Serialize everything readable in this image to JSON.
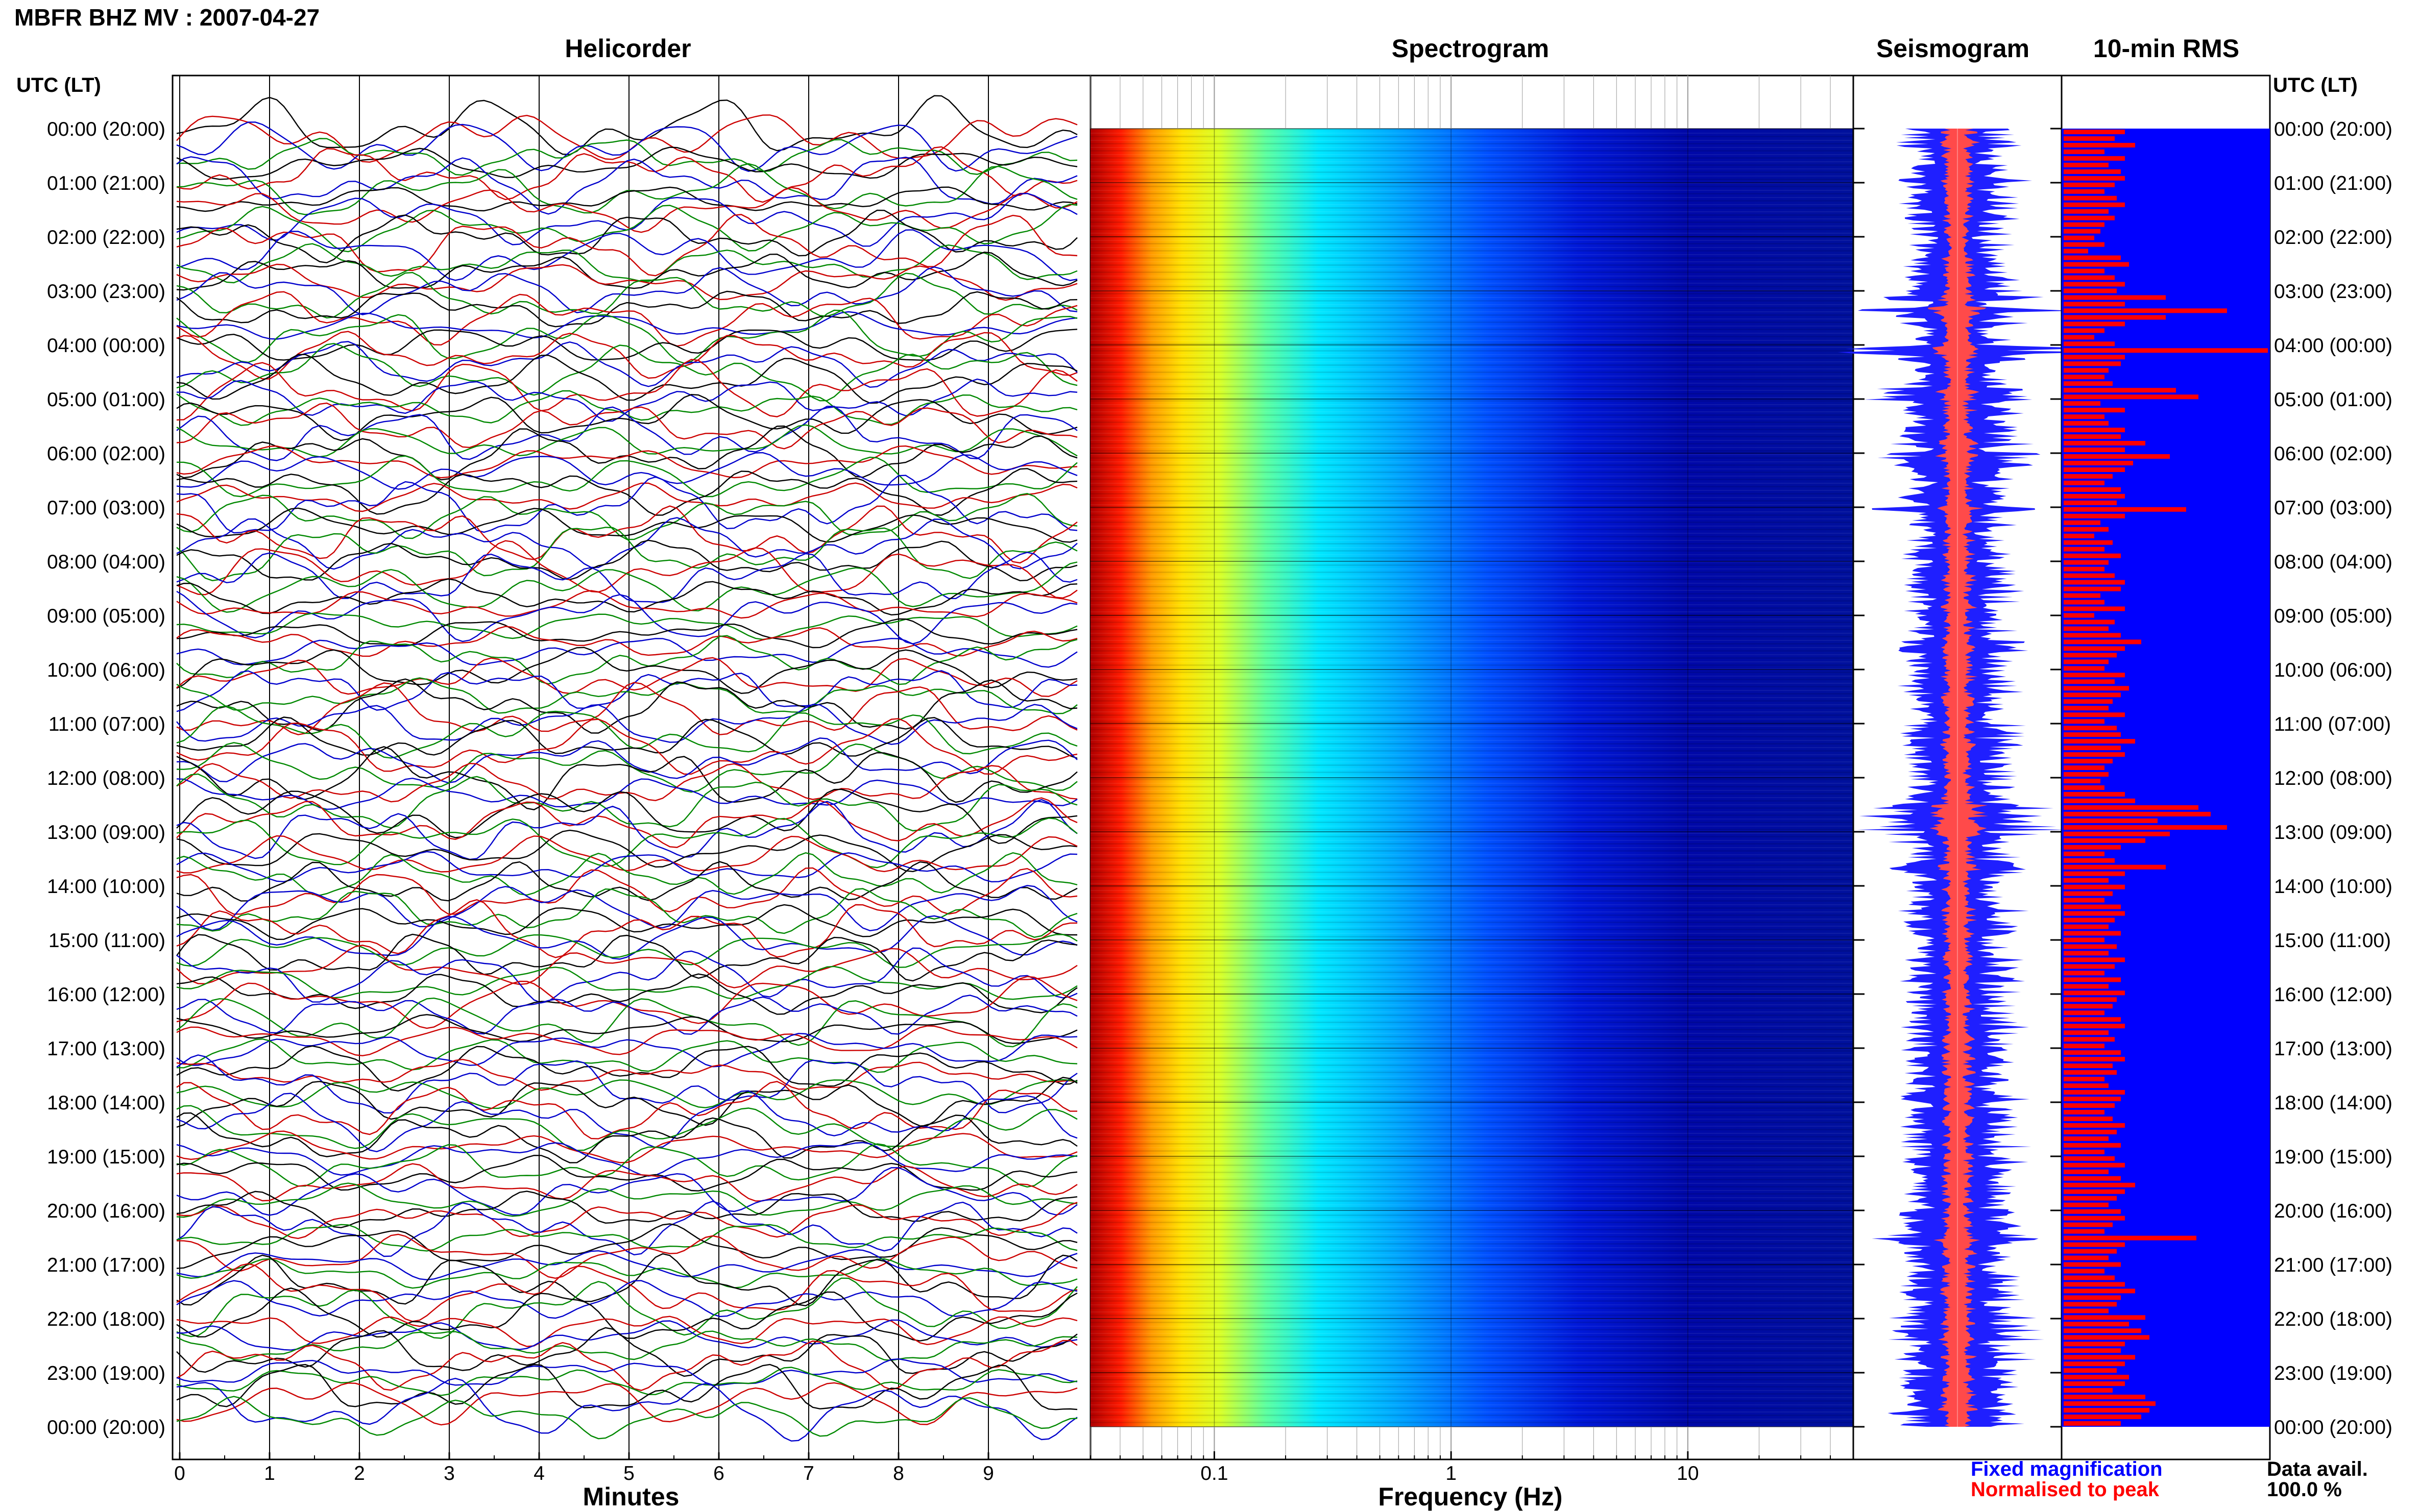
{
  "chart_data": {
    "type": "helicorder-spectrogram",
    "title": "MBFR BHZ MV : 2007-04-27",
    "panels": {
      "helicorder": {
        "title": "Helicorder",
        "xlabel": "Minutes",
        "x_ticks": [
          "0",
          "1",
          "2",
          "3",
          "4",
          "5",
          "6",
          "7",
          "8",
          "9"
        ],
        "xlim": [
          0,
          10
        ],
        "trace_colors": [
          "#000000",
          "#cc0000",
          "#0000cc",
          "#008800"
        ]
      },
      "spectrogram": {
        "title": "Spectrogram",
        "xlabel": "Frequency (Hz)",
        "x_scale": "log",
        "x_ticks": [
          "0.1",
          "1",
          "10"
        ],
        "x_tick_values": [
          0.1,
          1,
          10
        ],
        "xlim": [
          0.03,
          50
        ],
        "colormap": "jet"
      },
      "seismogram": {
        "title": "Seismogram",
        "legend": [
          {
            "label": "Fixed magnification",
            "color": "#0000ff"
          },
          {
            "label": "Normalised to peak",
            "color": "#ff0000"
          }
        ]
      },
      "rms": {
        "title": "10-min RMS",
        "bar_color": "#ff0000",
        "background": "#0000ff",
        "data_availability_label": "Data avail.",
        "data_availability_value": "100.0 %",
        "relative_values": [
          0.3,
          0.25,
          0.35,
          0.2,
          0.3,
          0.22,
          0.28,
          0.3,
          0.25,
          0.2,
          0.26,
          0.3,
          0.22,
          0.25,
          0.2,
          0.18,
          0.15,
          0.2,
          0.12,
          0.28,
          0.32,
          0.2,
          0.25,
          0.3,
          0.26,
          0.5,
          0.3,
          0.8,
          0.5,
          0.3,
          0.2,
          0.15,
          0.25,
          1.0,
          0.3,
          0.28,
          0.22,
          0.2,
          0.24,
          0.55,
          0.66,
          0.18,
          0.3,
          0.2,
          0.22,
          0.3,
          0.28,
          0.4,
          0.3,
          0.52,
          0.34,
          0.3,
          0.24,
          0.2,
          0.28,
          0.3,
          0.26,
          0.6,
          0.3,
          0.18,
          0.22,
          0.15,
          0.24,
          0.2,
          0.28,
          0.22,
          0.2,
          0.25,
          0.3,
          0.28,
          0.18,
          0.2,
          0.3,
          0.15,
          0.25,
          0.22,
          0.28,
          0.38,
          0.3,
          0.26,
          0.22,
          0.2,
          0.3,
          0.25,
          0.32,
          0.28,
          0.24,
          0.22,
          0.3,
          0.2,
          0.26,
          0.28,
          0.35,
          0.28,
          0.3,
          0.24,
          0.2,
          0.22,
          0.18,
          0.2,
          0.3,
          0.35,
          0.66,
          0.72,
          0.46,
          0.8,
          0.52,
          0.4,
          0.28,
          0.2,
          0.25,
          0.5,
          0.3,
          0.22,
          0.3,
          0.24,
          0.2,
          0.28,
          0.3,
          0.25,
          0.22,
          0.28,
          0.2,
          0.26,
          0.22,
          0.3,
          0.25,
          0.2,
          0.28,
          0.22,
          0.3,
          0.26,
          0.24,
          0.2,
          0.28,
          0.3,
          0.22,
          0.25,
          0.2,
          0.28,
          0.3,
          0.24,
          0.26,
          0.2,
          0.22,
          0.3,
          0.28,
          0.25,
          0.2,
          0.24,
          0.3,
          0.26,
          0.22,
          0.28,
          0.2,
          0.25,
          0.3,
          0.22,
          0.28,
          0.35,
          0.3,
          0.26,
          0.22,
          0.28,
          0.3,
          0.24,
          0.2,
          0.65,
          0.3,
          0.26,
          0.22,
          0.28,
          0.2,
          0.25,
          0.3,
          0.35,
          0.28,
          0.26,
          0.22,
          0.4,
          0.32,
          0.38,
          0.42,
          0.3,
          0.28,
          0.35,
          0.3,
          0.26,
          0.32,
          0.3,
          0.24,
          0.4,
          0.45,
          0.42,
          0.38,
          0.28
        ]
      }
    },
    "y_axis": {
      "label": "UTC (LT)",
      "ticks": [
        "00:00 (20:00)",
        "01:00 (21:00)",
        "02:00 (22:00)",
        "03:00 (23:00)",
        "04:00 (00:00)",
        "05:00 (01:00)",
        "06:00 (02:00)",
        "07:00 (03:00)",
        "08:00 (04:00)",
        "09:00 (05:00)",
        "10:00 (06:00)",
        "11:00 (07:00)",
        "12:00 (08:00)",
        "13:00 (09:00)",
        "14:00 (10:00)",
        "15:00 (11:00)",
        "16:00 (12:00)",
        "17:00 (13:00)",
        "18:00 (14:00)",
        "19:00 (15:00)",
        "20:00 (16:00)",
        "21:00 (17:00)",
        "22:00 (18:00)",
        "23:00 (19:00)",
        "00:00 (20:00)"
      ]
    }
  }
}
